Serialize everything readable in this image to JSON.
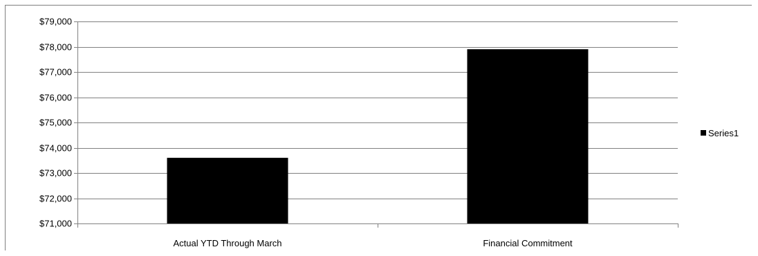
{
  "chart_data": {
    "type": "bar",
    "categories": [
      "Actual YTD Through March",
      "Financial Commitment"
    ],
    "series": [
      {
        "name": "Series1",
        "values": [
          73600,
          77900
        ],
        "color": "#000000"
      }
    ],
    "ylim": [
      71000,
      79000
    ],
    "yticks": [
      "$71,000",
      "$72,000",
      "$73,000",
      "$74,000",
      "$75,000",
      "$76,000",
      "$77,000",
      "$78,000",
      "$79,000"
    ],
    "ytick_values": [
      71000,
      72000,
      73000,
      74000,
      75000,
      76000,
      77000,
      78000,
      79000
    ],
    "grid": true,
    "grid_color": "#808080",
    "legend_position": "right"
  }
}
